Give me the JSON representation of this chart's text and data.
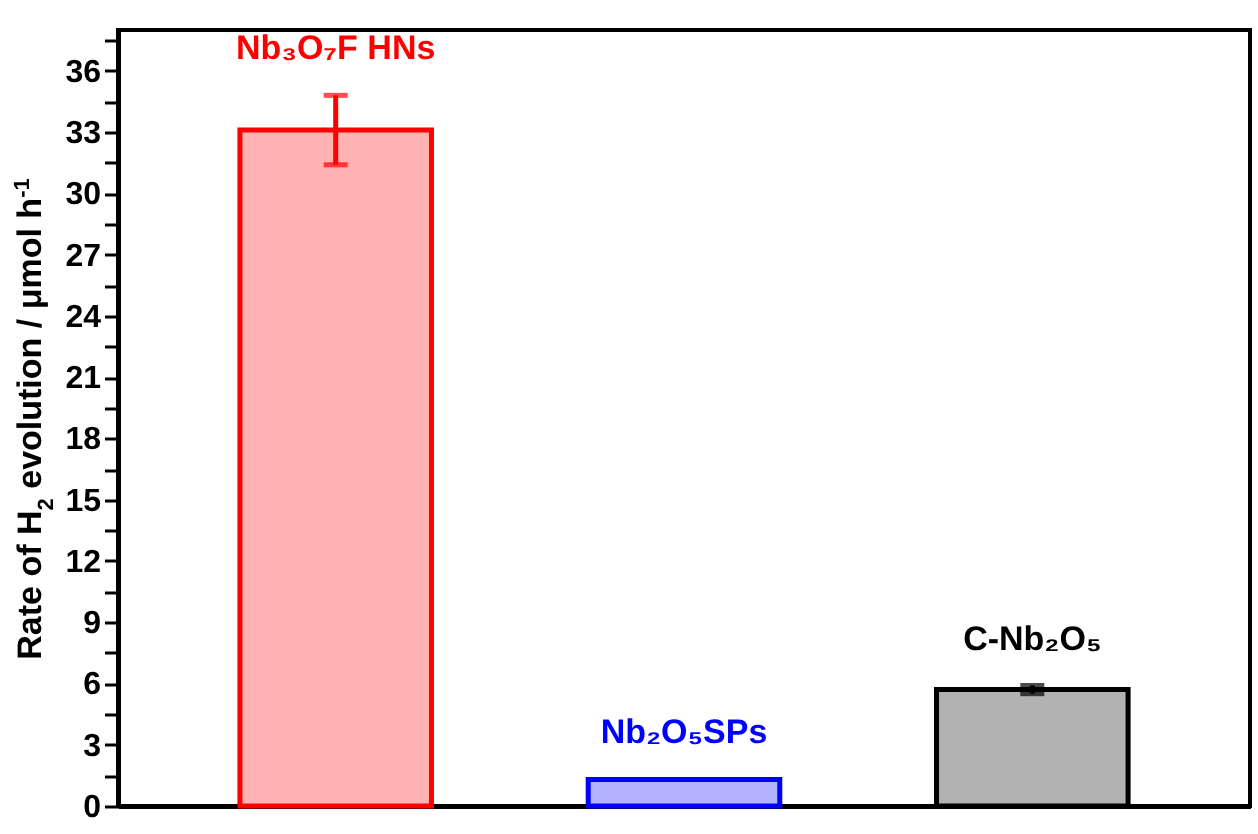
{
  "chart_data": {
    "type": "bar",
    "ylabel": "Rate of H$_{2}$ evolution / μmol h$^{-1}$",
    "categories": [
      "Nb₃O₇F HNs",
      "Nb₂O₅SPs",
      "C-Nb₂O₅"
    ],
    "values": [
      33.1,
      1.3,
      5.7
    ],
    "errors": [
      1.7,
      null,
      0.2
    ],
    "colors": [
      "#ff0000",
      "#0000ff",
      "#000000"
    ],
    "ylim": [
      0,
      38
    ],
    "yticks": [
      0,
      {
        "value": 1.5,
        "label": null
      },
      3,
      {
        "value": 4.5,
        "label": null
      },
      6,
      {
        "value": 7.5,
        "label": null
      },
      9,
      {
        "value": 10.5,
        "label": null
      },
      12,
      {
        "value": 13.5,
        "label": null
      },
      15,
      {
        "value": 16.5,
        "label": null
      },
      18,
      {
        "value": 19.5,
        "label": null
      },
      21,
      {
        "value": 22.5,
        "label": null
      },
      24,
      {
        "value": 25.5,
        "label": null
      },
      27,
      {
        "value": 28.5,
        "label": null
      },
      30,
      {
        "value": 31.5,
        "label": null
      },
      33,
      {
        "value": 34.5,
        "label": null
      },
      36,
      {
        "value": 37.5,
        "label": null
      }
    ],
    "tick_labels": "y",
    "grid": false,
    "legend": false
  }
}
